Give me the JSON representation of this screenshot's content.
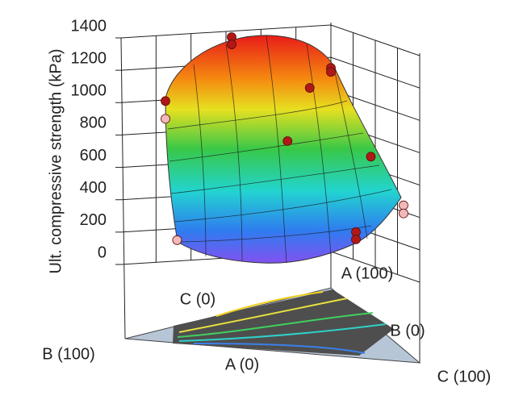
{
  "chart_data": {
    "type": "mixture-surface",
    "zlabel": "Ult. compressive strength (kPa)",
    "zlim": [
      0,
      1400
    ],
    "zticks": [
      0,
      200,
      400,
      600,
      800,
      1000,
      1200,
      1400
    ],
    "vertex_labels": {
      "a_high": "A (100)",
      "a_low": "A (0)",
      "b_high": "B (100)",
      "b_low": "B (0)",
      "c_high": "C (100)",
      "c_low": "C (0)"
    },
    "design_points": [
      {
        "a": 0,
        "b": 1,
        "c": 0,
        "value": 1020,
        "color": "#b01818"
      },
      {
        "a": 0,
        "b": 1,
        "c": 0,
        "value": 910,
        "color": "#f2b9b9"
      },
      {
        "a": 0.07,
        "b": 0.93,
        "c": 0,
        "value": 150,
        "color": "#f2b9b9"
      },
      {
        "a": 0.4,
        "b": 0.6,
        "c": 0,
        "value": 1355,
        "color": "#b01818"
      },
      {
        "a": 0.4,
        "b": 0.6,
        "c": 0,
        "value": 1310,
        "color": "#b01818"
      },
      {
        "a": 1,
        "b": 0,
        "c": 0,
        "value": 1075,
        "color": "#b01818"
      },
      {
        "a": 1,
        "b": 0,
        "c": 0,
        "value": 1050,
        "color": "#b01818"
      },
      {
        "a": 0.8,
        "b": 0.15,
        "c": 0.05,
        "value": 985,
        "color": "#b01818"
      },
      {
        "a": 0.45,
        "b": 0.35,
        "c": 0.2,
        "value": 720,
        "color": "#b01818"
      },
      {
        "a": 0.45,
        "b": 0,
        "c": 0.55,
        "value": 650,
        "color": "#b01818"
      },
      {
        "a": 0,
        "b": 0,
        "c": 1,
        "value": 450,
        "color": "#f2b9b9"
      },
      {
        "a": 0,
        "b": 0,
        "c": 1,
        "value": 400,
        "color": "#f2b9b9"
      },
      {
        "a": 0,
        "b": 0.2,
        "c": 0.8,
        "value": 270,
        "color": "#b01818"
      },
      {
        "a": 0,
        "b": 0.2,
        "c": 0.8,
        "value": 225,
        "color": "#b01818"
      }
    ]
  }
}
